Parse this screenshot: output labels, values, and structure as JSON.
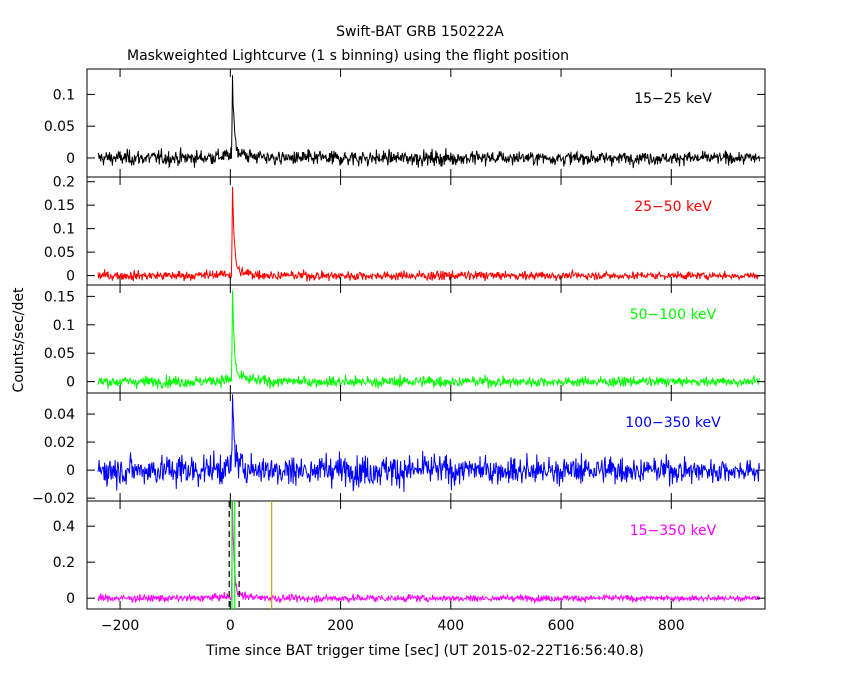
{
  "figure": {
    "title": "Swift-BAT GRB 150222A",
    "subtitle": "Maskweighted Lightcurve (1 s binning) using the flight position",
    "xlabel": "Time since BAT trigger time [sec] (UT 2015-02-22T16:56:40.8)",
    "ylabel": "Counts/sec/det"
  },
  "chart_data": [
    {
      "type": "line",
      "band": "15-25 keV",
      "band_label": "15−25 keV",
      "color": "#000000",
      "xlim": [
        -260,
        970
      ],
      "ylim": [
        -0.03,
        0.14
      ],
      "yticks": [
        0,
        0.05,
        0.1
      ],
      "ytick_labels": [
        "0",
        "0.05",
        "0.1"
      ],
      "xticks": [
        -200,
        0,
        200,
        400,
        600,
        800
      ],
      "noise_sigma": 0.006,
      "peak": {
        "x": 4,
        "y": 0.13
      },
      "tail": 0.012,
      "grid": false
    },
    {
      "type": "line",
      "band": "25-50 keV",
      "band_label": "25−50 keV",
      "color": "#ff0000",
      "xlim": [
        -260,
        970
      ],
      "ylim": [
        -0.02,
        0.21
      ],
      "yticks": [
        0,
        0.05,
        0.1,
        0.15,
        0.2
      ],
      "ytick_labels": [
        "0",
        "0.05",
        "0.1",
        "0.15",
        "0.2"
      ],
      "xticks": [
        -200,
        0,
        200,
        400,
        600,
        800
      ],
      "noise_sigma": 0.005,
      "peak": {
        "x": 4,
        "y": 0.2
      },
      "tail": 0.012,
      "grid": false
    },
    {
      "type": "line",
      "band": "50-100 keV",
      "band_label": "50−100 keV",
      "color": "#00ff00",
      "xlim": [
        -260,
        970
      ],
      "ylim": [
        -0.02,
        0.17
      ],
      "yticks": [
        0,
        0.05,
        0.1,
        0.15
      ],
      "ytick_labels": [
        "0",
        "0.05",
        "0.1",
        "0.15"
      ],
      "xticks": [
        -200,
        0,
        200,
        400,
        600,
        800
      ],
      "noise_sigma": 0.005,
      "peak": {
        "x": 4,
        "y": 0.165
      },
      "tail": 0.012,
      "grid": false
    },
    {
      "type": "line",
      "band": "100-350 keV",
      "band_label": "100−350 keV",
      "color": "#0000ff",
      "xlim": [
        -260,
        970
      ],
      "ylim": [
        -0.022,
        0.055
      ],
      "yticks": [
        -0.02,
        0,
        0.02,
        0.04
      ],
      "ytick_labels": [
        "−0.02",
        "0",
        "0.02",
        "0.04"
      ],
      "xticks": [
        -200,
        0,
        200,
        400,
        600,
        800
      ],
      "noise_sigma": 0.0055,
      "peak": {
        "x": 4,
        "y": 0.05
      },
      "tail": 0.006,
      "grid": false
    },
    {
      "type": "line",
      "band": "15-350 keV",
      "band_label": "15−350 keV",
      "color": "#ff00ff",
      "xlim": [
        -260,
        970
      ],
      "ylim": [
        -0.06,
        0.54
      ],
      "yticks": [
        0,
        0.2,
        0.4
      ],
      "ytick_labels": [
        "0",
        "0.2",
        "0.4"
      ],
      "xticks": [
        -200,
        0,
        200,
        400,
        600,
        800
      ],
      "xtick_labels": [
        "−200",
        "0",
        "200",
        "400",
        "600",
        "800"
      ],
      "noise_sigma": 0.01,
      "peak": {
        "x": 4,
        "y": 0.52
      },
      "tail": 0.03,
      "grid": false,
      "markers": [
        {
          "x": -2,
          "color": "#000000",
          "style": "dashed",
          "meaning": "T90 start"
        },
        {
          "x": 16,
          "color": "#000000",
          "style": "dashed",
          "meaning": "T90 end"
        },
        {
          "x": 3,
          "color": "#00ff00",
          "style": "solid",
          "meaning": "T50 start"
        },
        {
          "x": 8,
          "color": "#00ff00",
          "style": "solid",
          "meaning": "T50 end"
        },
        {
          "x": 75,
          "color": "#c8a000",
          "style": "solid",
          "meaning": "slew"
        }
      ]
    }
  ]
}
